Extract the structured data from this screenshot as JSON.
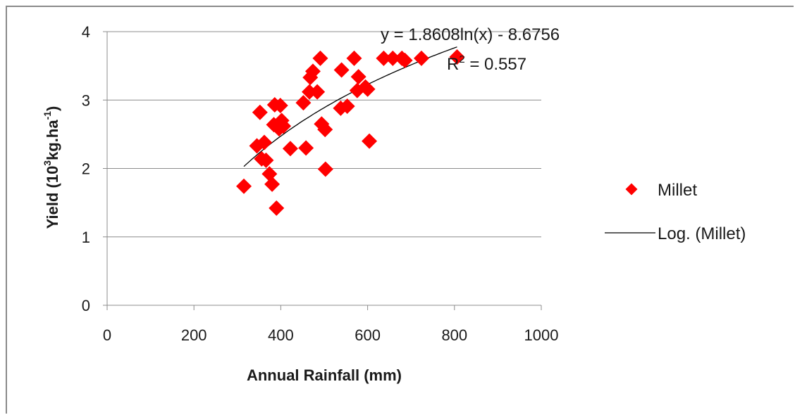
{
  "chart_data": {
    "type": "scatter",
    "xlabel": "Annual Rainfall (mm)",
    "ylabel_parts": [
      "Yield (10",
      "3",
      "kg.ha",
      "-1",
      ")"
    ],
    "xlim": [
      0,
      1000
    ],
    "ylim": [
      0,
      4
    ],
    "xticks": [
      0,
      200,
      400,
      600,
      800,
      1000
    ],
    "yticks": [
      0,
      1,
      2,
      3,
      4
    ],
    "grid": "horizontal",
    "legend_position": "right",
    "series": [
      {
        "name": "Millet",
        "marker": "diamond",
        "color": "#ff0000",
        "points": [
          [
            315,
            1.74
          ],
          [
            345,
            2.33
          ],
          [
            352,
            2.82
          ],
          [
            356,
            2.14
          ],
          [
            362,
            2.38
          ],
          [
            366,
            2.12
          ],
          [
            374,
            1.92
          ],
          [
            380,
            1.77
          ],
          [
            384,
            2.64
          ],
          [
            386,
            2.93
          ],
          [
            390,
            1.42
          ],
          [
            396,
            2.58
          ],
          [
            399,
            2.92
          ],
          [
            402,
            2.7
          ],
          [
            406,
            2.62
          ],
          [
            422,
            2.29
          ],
          [
            452,
            2.96
          ],
          [
            458,
            2.3
          ],
          [
            466,
            3.12
          ],
          [
            468,
            3.33
          ],
          [
            474,
            3.42
          ],
          [
            484,
            3.12
          ],
          [
            491,
            3.61
          ],
          [
            494,
            2.65
          ],
          [
            502,
            2.57
          ],
          [
            503,
            1.99
          ],
          [
            538,
            2.88
          ],
          [
            540,
            3.44
          ],
          [
            553,
            2.91
          ],
          [
            569,
            3.61
          ],
          [
            576,
            3.14
          ],
          [
            579,
            3.34
          ],
          [
            595,
            3.19
          ],
          [
            600,
            3.16
          ],
          [
            604,
            2.4
          ],
          [
            637,
            3.61
          ],
          [
            658,
            3.61
          ],
          [
            679,
            3.61
          ],
          [
            686,
            3.58
          ],
          [
            724,
            3.61
          ],
          [
            806,
            3.63
          ]
        ]
      }
    ],
    "trendline": {
      "name": "Log. (Millet)",
      "color": "#000000",
      "type": "logarithmic",
      "a": 1.8608,
      "b": -8.6756,
      "x_range": [
        315,
        806
      ]
    },
    "annotations": {
      "equation": "y = 1.8608ln(x) - 8.6756",
      "r2_prefix": "R",
      "r2_sup": "2",
      "r2_rest": " = 0.557"
    }
  }
}
